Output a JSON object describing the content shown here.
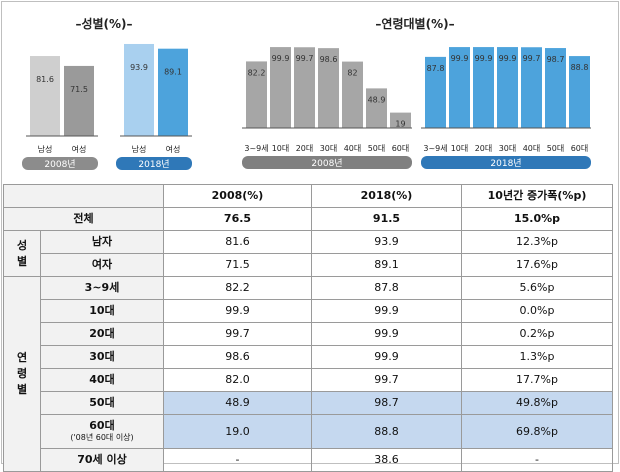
{
  "chart_data": [
    {
      "type": "bar",
      "title": "–성별(%)–",
      "groups": [
        {
          "name": "2008년",
          "categories": [
            "남성",
            "여성"
          ],
          "values": [
            81.6,
            71.5
          ]
        },
        {
          "name": "2018년",
          "categories": [
            "남성",
            "여성"
          ],
          "values": [
            93.9,
            89.1
          ]
        }
      ],
      "ylim": [
        0,
        100
      ],
      "colors": {
        "2008_light": "#cfcfcf",
        "2008_dark": "#9a9a9a",
        "2018_light": "#a9d0ef",
        "2018_dark": "#4da3dc"
      }
    },
    {
      "type": "bar",
      "title": "–연령대별(%)–",
      "groups": [
        {
          "name": "2008년",
          "categories": [
            "3~9세",
            "10대",
            "20대",
            "30대",
            "40대",
            "50대",
            "60대"
          ],
          "values": [
            82.2,
            99.9,
            99.7,
            98.6,
            82.0,
            48.9,
            19.0
          ]
        },
        {
          "name": "2018년",
          "categories": [
            "3~9세",
            "10대",
            "20대",
            "30대",
            "40대",
            "50대",
            "60대"
          ],
          "values": [
            87.8,
            99.9,
            99.9,
            99.9,
            99.7,
            98.7,
            88.8
          ]
        }
      ],
      "ylim": [
        0,
        100
      ],
      "colors": {
        "2008": "#a6a6a6",
        "2018": "#4da3dc",
        "2008_badge": "#808080",
        "2018_badge": "#2f78b8"
      }
    },
    {
      "type": "table",
      "header": [
        "",
        "2008(%)",
        "2018(%)",
        "10년간 증가폭(%p)"
      ],
      "total": {
        "label": "전체",
        "values": [
          "76.5",
          "91.5",
          "15.0%p"
        ]
      },
      "groups": [
        {
          "label": "성별",
          "rows": [
            {
              "label": "남자",
              "values": [
                "81.6",
                "93.9",
                "12.3%p"
              ]
            },
            {
              "label": "여자",
              "values": [
                "71.5",
                "89.1",
                "17.6%p"
              ]
            }
          ]
        },
        {
          "label": "연령별",
          "rows": [
            {
              "label": "3~9세",
              "values": [
                "82.2",
                "87.8",
                "5.6%p"
              ]
            },
            {
              "label": "10대",
              "values": [
                "99.9",
                "99.9",
                "0.0%p"
              ]
            },
            {
              "label": "20대",
              "values": [
                "99.7",
                "99.9",
                "0.2%p"
              ]
            },
            {
              "label": "30대",
              "values": [
                "98.6",
                "99.9",
                "1.3%p"
              ]
            },
            {
              "label": "40대",
              "values": [
                "82.0",
                "99.7",
                "17.7%p"
              ]
            },
            {
              "label": "50대",
              "values": [
                "48.9",
                "98.7",
                "49.8%p"
              ],
              "highlight": true
            },
            {
              "label": "60대",
              "sublabel": "('08년 60대 이상)",
              "values": [
                "19.0",
                "88.8",
                "69.8%p"
              ],
              "highlight": true
            },
            {
              "label": "70세 이상",
              "values": [
                "-",
                "38.6",
                "-"
              ]
            }
          ]
        }
      ]
    }
  ]
}
